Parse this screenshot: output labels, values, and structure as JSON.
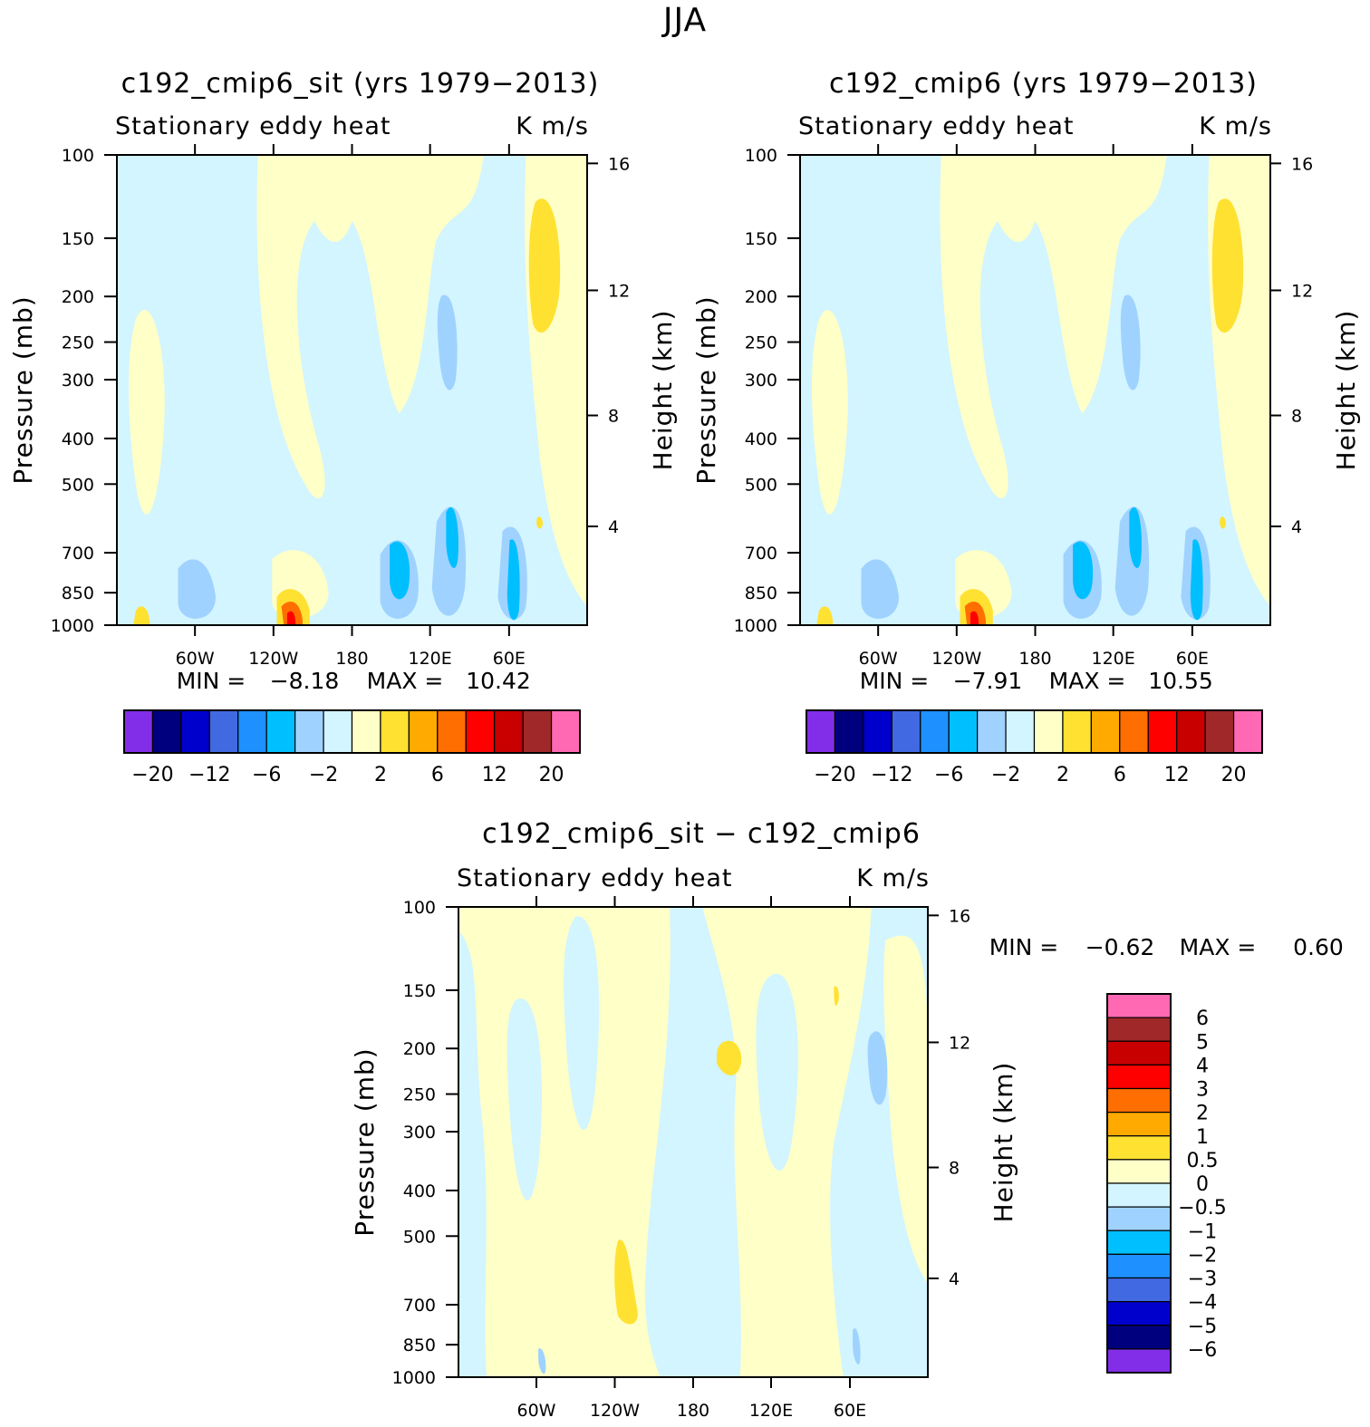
{
  "figure_title": "JJA",
  "colors": {
    "neg": [
      "#822ee8",
      "#00007f",
      "#0000cd",
      "#4169e1",
      "#1e90ff",
      "#00bfff",
      "#a0d2ff",
      "#d2f5ff"
    ],
    "pos": [
      "#ffffc8",
      "#ffe132",
      "#ffaa00",
      "#ff6e00",
      "#ff0000",
      "#c80000",
      "#a02828",
      "#ff69b4"
    ]
  },
  "chart_data": [
    {
      "type": "contour",
      "title": "c192_cmip6_sit (yrs 1979−2013)",
      "subtitle_left": "Stationary eddy heat",
      "subtitle_right": "K m/s",
      "ylabel": "Pressure (mb)",
      "y2label": "Height (km)",
      "yticks": [
        "100",
        "150",
        "200",
        "250",
        "300",
        "400",
        "500",
        "700",
        "850",
        "1000"
      ],
      "y2ticks": [
        "16",
        "12",
        "8",
        "4"
      ],
      "xticks": [
        "60W",
        "120W",
        "180",
        "120E",
        "60E"
      ],
      "min_label": "MIN =",
      "min_value": "−8.18",
      "max_label": "MAX =",
      "max_value": "10.42",
      "colorbar_labels": [
        "−20",
        "−12",
        "−6",
        "−2",
        "2",
        "6",
        "12",
        "20"
      ]
    },
    {
      "type": "contour",
      "title": "c192_cmip6 (yrs 1979−2013)",
      "subtitle_left": "Stationary eddy heat",
      "subtitle_right": "K m/s",
      "ylabel": "Pressure (mb)",
      "y2label": "Height (km)",
      "yticks": [
        "100",
        "150",
        "200",
        "250",
        "300",
        "400",
        "500",
        "700",
        "850",
        "1000"
      ],
      "y2ticks": [
        "16",
        "12",
        "8",
        "4"
      ],
      "xticks": [
        "60W",
        "120W",
        "180",
        "120E",
        "60E"
      ],
      "min_label": "MIN =",
      "min_value": "−7.91",
      "max_label": "MAX =",
      "max_value": "10.55",
      "colorbar_labels": [
        "−20",
        "−12",
        "−6",
        "−2",
        "2",
        "6",
        "12",
        "20"
      ]
    },
    {
      "type": "contour",
      "title": "c192_cmip6_sit − c192_cmip6",
      "subtitle_left": "Stationary eddy heat",
      "subtitle_right": "K m/s",
      "ylabel": "Pressure (mb)",
      "y2label": "Height (km)",
      "yticks": [
        "100",
        "150",
        "200",
        "250",
        "300",
        "400",
        "500",
        "700",
        "850",
        "1000"
      ],
      "y2ticks": [
        "16",
        "12",
        "8",
        "4"
      ],
      "xticks": [
        "60W",
        "120W",
        "180",
        "120E",
        "60E"
      ],
      "min_label": "MIN =",
      "min_value": "−0.62",
      "max_label": "MAX =",
      "max_value": "0.60",
      "colorbar_labels": [
        "6",
        "5",
        "4",
        "3",
        "2",
        "1",
        "0.5",
        "0",
        "−0.5",
        "−1",
        "−2",
        "−3",
        "−4",
        "−5",
        "−6"
      ]
    }
  ]
}
